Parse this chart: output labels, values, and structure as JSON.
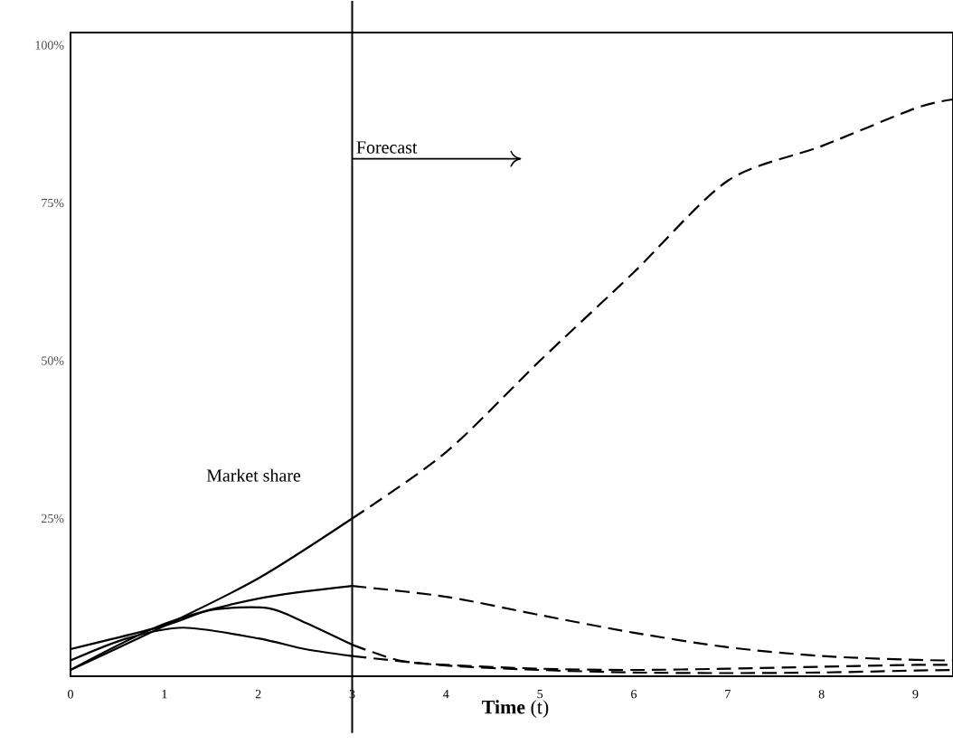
{
  "chart_data": {
    "type": "line",
    "xlabel": "**Time** (t)",
    "xlim": [
      0,
      9.4
    ],
    "ylim": [
      0,
      102
    ],
    "xticks": [
      0,
      1,
      2,
      3,
      4,
      5,
      6,
      7,
      8,
      9
    ],
    "yticks": [
      {
        "value": 25,
        "label": "25%"
      },
      {
        "value": 50,
        "label": "50%"
      },
      {
        "value": 75,
        "label": "75%"
      },
      {
        "value": 100,
        "label": "100%"
      }
    ],
    "series": [
      {
        "color": "#000000",
        "line_style": "solid",
        "x": [
          0,
          1,
          2,
          3
        ],
        "values": [
          1,
          8,
          15.5,
          25
        ]
      },
      {
        "color": "#000000",
        "line_style": "dashed",
        "x": [
          3,
          4,
          5,
          6,
          7,
          8,
          9,
          9.4
        ],
        "values": [
          25,
          35.5,
          50,
          64,
          78.5,
          84,
          90,
          91.4
        ]
      },
      {
        "color": "#000000",
        "line_style": "solid",
        "x": [
          0,
          1,
          2,
          3
        ],
        "values": [
          1,
          8.3,
          12.3,
          14.3
        ]
      },
      {
        "color": "#000000",
        "line_style": "dashed",
        "x": [
          3,
          4,
          5,
          6,
          7,
          8,
          9,
          9.4
        ],
        "values": [
          14.3,
          12.6,
          9.7,
          6.9,
          4.6,
          3.2,
          2.6,
          2.5
        ]
      },
      {
        "color": "#000000",
        "line_style": "solid",
        "x": [
          0,
          1,
          1.5,
          2.1,
          2.5,
          3
        ],
        "values": [
          4.3,
          8,
          10.5,
          10.8,
          8.5,
          5
        ]
      },
      {
        "color": "#000000",
        "line_style": "dashed",
        "x": [
          3,
          3.5,
          4,
          5,
          6,
          7,
          8,
          9,
          9.4
        ],
        "values": [
          5,
          2.5,
          1.8,
          1.2,
          1,
          1.2,
          1.5,
          1.8,
          1.8
        ]
      },
      {
        "color": "#000000",
        "line_style": "solid",
        "x": [
          0,
          0.6,
          1.2,
          2,
          2.5,
          3
        ],
        "values": [
          2.5,
          6,
          7.7,
          6,
          4.3,
          3.2
        ]
      },
      {
        "color": "#000000",
        "line_style": "dashed",
        "x": [
          3,
          4,
          5,
          6,
          7,
          8,
          9,
          9.4
        ],
        "values": [
          3.2,
          1.7,
          1,
          0.6,
          0.5,
          0.6,
          0.9,
          1
        ]
      }
    ],
    "ref_lines": [
      {
        "axis": "x",
        "value": 3,
        "color": "#000000",
        "line_style": "solid"
      }
    ],
    "annotations": [
      "Forecast",
      "Market share"
    ]
  }
}
